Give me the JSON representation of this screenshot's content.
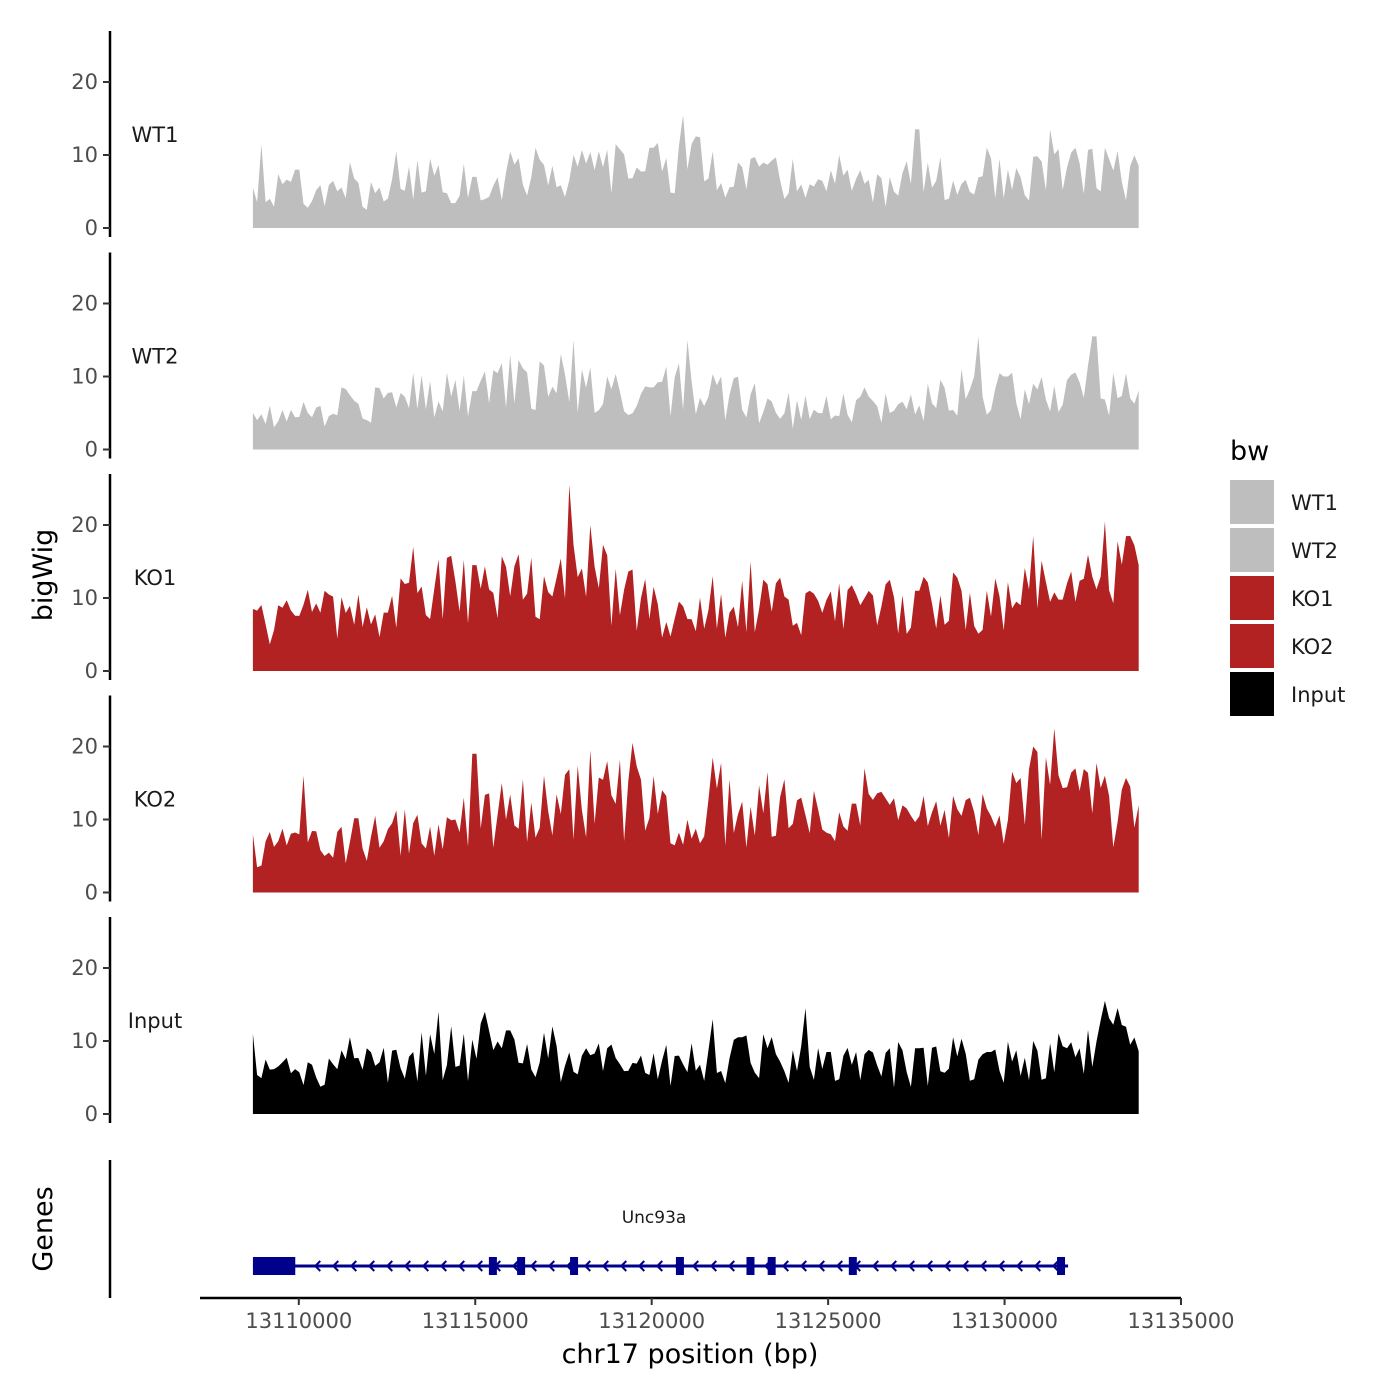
{
  "chart_data": {
    "type": "area",
    "ylabel": "bigWig",
    "xlabel": "chr17 position (bp)",
    "xlim": [
      13107200,
      13135000
    ],
    "ylim": [
      0,
      27
    ],
    "y_ticks": [
      0,
      10,
      20
    ],
    "x_ticks": [
      13110000,
      13115000,
      13120000,
      13125000,
      13130000,
      13135000
    ],
    "x_tick_labels": [
      "13110000",
      "13115000",
      "13120000",
      "13125000",
      "13130000",
      "13135000"
    ],
    "tracks_x_range": [
      13108700,
      13133800
    ],
    "series": [
      {
        "name": "WT1",
        "color": "#bebebe",
        "peaks": [
          [
            0.0,
            5.5
          ],
          [
            0.01,
            11.5
          ],
          [
            0.02,
            4
          ],
          [
            0.05,
            8
          ],
          [
            0.08,
            3
          ],
          [
            0.11,
            9
          ],
          [
            0.13,
            2.5
          ],
          [
            0.16,
            10.5
          ],
          [
            0.2,
            9.5
          ],
          [
            0.25,
            7
          ],
          [
            0.29,
            10.5
          ],
          [
            0.32,
            11
          ],
          [
            0.36,
            10
          ],
          [
            0.41,
            11.5
          ],
          [
            0.45,
            11
          ],
          [
            0.485,
            15.5
          ],
          [
            0.52,
            10.5
          ],
          [
            0.56,
            9.5
          ],
          [
            0.61,
            9.5
          ],
          [
            0.63,
            6
          ],
          [
            0.66,
            10
          ],
          [
            0.7,
            3.5
          ],
          [
            0.75,
            13.5
          ],
          [
            0.79,
            6.5
          ],
          [
            0.83,
            11
          ],
          [
            0.87,
            4.5
          ],
          [
            0.9,
            13.5
          ],
          [
            0.93,
            11
          ],
          [
            0.96,
            11
          ],
          [
            0.99,
            8.5
          ]
        ]
      },
      {
        "name": "WT2",
        "color": "#bebebe",
        "peaks": [
          [
            0.0,
            5
          ],
          [
            0.02,
            6
          ],
          [
            0.06,
            5
          ],
          [
            0.1,
            8.5
          ],
          [
            0.14,
            8.5
          ],
          [
            0.18,
            10.5
          ],
          [
            0.22,
            10.5
          ],
          [
            0.25,
            8
          ],
          [
            0.29,
            13
          ],
          [
            0.33,
            11.5
          ],
          [
            0.36,
            15
          ],
          [
            0.4,
            10
          ],
          [
            0.45,
            8.5
          ],
          [
            0.49,
            15
          ],
          [
            0.53,
            10
          ],
          [
            0.58,
            7
          ],
          [
            0.64,
            5
          ],
          [
            0.69,
            8.5
          ],
          [
            0.72,
            5
          ],
          [
            0.76,
            9
          ],
          [
            0.8,
            11
          ],
          [
            0.82,
            15.5
          ],
          [
            0.85,
            10
          ],
          [
            0.88,
            9
          ],
          [
            0.92,
            9.5
          ],
          [
            0.95,
            15.5
          ],
          [
            0.97,
            10.5
          ],
          [
            0.99,
            7
          ]
        ]
      },
      {
        "name": "KO1",
        "color": "#b22222",
        "peaks": [
          [
            0.0,
            8.5
          ],
          [
            0.03,
            9
          ],
          [
            0.08,
            11
          ],
          [
            0.12,
            10.5
          ],
          [
            0.15,
            8
          ],
          [
            0.18,
            17
          ],
          [
            0.22,
            15.5
          ],
          [
            0.25,
            14.5
          ],
          [
            0.3,
            16
          ],
          [
            0.33,
            13
          ],
          [
            0.355,
            25.5
          ],
          [
            0.38,
            20
          ],
          [
            0.41,
            14
          ],
          [
            0.44,
            10
          ],
          [
            0.48,
            9.5
          ],
          [
            0.52,
            13
          ],
          [
            0.54,
            8
          ],
          [
            0.56,
            15
          ],
          [
            0.59,
            12
          ],
          [
            0.63,
            11
          ],
          [
            0.68,
            10.5
          ],
          [
            0.72,
            12.5
          ],
          [
            0.75,
            11
          ],
          [
            0.79,
            13.5
          ],
          [
            0.83,
            11
          ],
          [
            0.86,
            9.5
          ],
          [
            0.88,
            18.5
          ],
          [
            0.92,
            12
          ],
          [
            0.96,
            20.5
          ],
          [
            0.99,
            18.5
          ]
        ]
      },
      {
        "name": "KO2",
        "color": "#b22222",
        "peaks": [
          [
            0.0,
            8
          ],
          [
            0.03,
            7
          ],
          [
            0.055,
            16
          ],
          [
            0.08,
            5
          ],
          [
            0.1,
            9
          ],
          [
            0.14,
            10.5
          ],
          [
            0.18,
            9.5
          ],
          [
            0.24,
            13
          ],
          [
            0.25,
            19
          ],
          [
            0.28,
            15
          ],
          [
            0.33,
            16
          ],
          [
            0.38,
            19.5
          ],
          [
            0.4,
            18
          ],
          [
            0.43,
            20.5
          ],
          [
            0.46,
            14
          ],
          [
            0.52,
            18.5
          ],
          [
            0.54,
            15.5
          ],
          [
            0.58,
            16.5
          ],
          [
            0.62,
            13
          ],
          [
            0.66,
            11
          ],
          [
            0.69,
            17
          ],
          [
            0.72,
            12
          ],
          [
            0.77,
            12.5
          ],
          [
            0.8,
            10.5
          ],
          [
            0.83,
            11.5
          ],
          [
            0.86,
            15
          ],
          [
            0.88,
            20
          ],
          [
            0.905,
            22.5
          ],
          [
            0.93,
            17
          ],
          [
            0.96,
            16
          ],
          [
            0.99,
            14.5
          ]
        ]
      },
      {
        "name": "Input",
        "color": "#000000",
        "peaks": [
          [
            0.0,
            11
          ],
          [
            0.03,
            6.5
          ],
          [
            0.07,
            5
          ],
          [
            0.11,
            10.5
          ],
          [
            0.13,
            9
          ],
          [
            0.18,
            8.5
          ],
          [
            0.21,
            14
          ],
          [
            0.24,
            11
          ],
          [
            0.26,
            14
          ],
          [
            0.28,
            9
          ],
          [
            0.34,
            12
          ],
          [
            0.37,
            8
          ],
          [
            0.4,
            9
          ],
          [
            0.43,
            7
          ],
          [
            0.48,
            8
          ],
          [
            0.52,
            13
          ],
          [
            0.55,
            10.5
          ],
          [
            0.58,
            9
          ],
          [
            0.625,
            14.5
          ],
          [
            0.65,
            8.5
          ],
          [
            0.68,
            8.5
          ],
          [
            0.72,
            9
          ],
          [
            0.75,
            9
          ],
          [
            0.79,
            10.5
          ],
          [
            0.83,
            8.5
          ],
          [
            0.88,
            10
          ],
          [
            0.92,
            9
          ],
          [
            0.96,
            15.5
          ],
          [
            0.975,
            14.5
          ],
          [
            0.99,
            9.5
          ]
        ]
      }
    ],
    "legend": {
      "title": "bw",
      "entries": [
        "WT1",
        "WT2",
        "KO1",
        "KO2",
        "Input"
      ],
      "colors": [
        "#bebebe",
        "#bebebe",
        "#b22222",
        "#b22222",
        "#000000"
      ],
      "position": "right"
    },
    "genes": {
      "panel_label": "Genes",
      "gene_name": "Unc93a",
      "color": "#00008b",
      "start": 13108700,
      "end": 13131800,
      "utr": [
        13108700,
        13109900
      ],
      "exons": [
        13115500,
        13116300,
        13117800,
        13120800,
        13122800,
        13123400,
        13125700,
        13131600
      ]
    }
  }
}
